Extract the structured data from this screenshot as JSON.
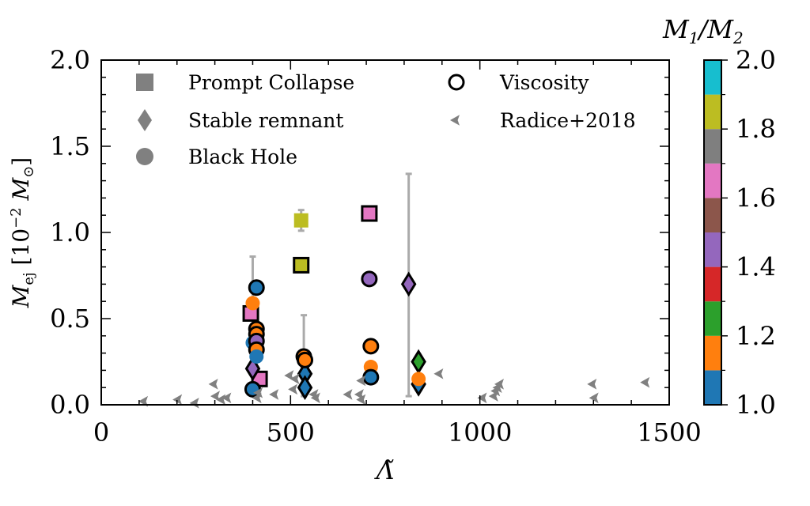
{
  "chart_data": {
    "type": "scatter",
    "xlabel": "Λ̃",
    "ylabel": "M_ej [10^-2 M_⊙]",
    "xlim": [
      0,
      1500
    ],
    "ylim": [
      0,
      2.0
    ],
    "x_ticks": [
      "0",
      "500",
      "1000",
      "1500"
    ],
    "y_ticks": [
      "0.0",
      "0.5",
      "1.0",
      "1.5",
      "2.0"
    ],
    "colorbar": {
      "label": "M1/M2",
      "range": [
        1.0,
        2.0
      ],
      "ticks": [
        "1.0",
        "1.2",
        "1.4",
        "1.6",
        "1.8",
        "2.0"
      ],
      "colors": [
        "#1f77b4",
        "#ff7f0e",
        "#2ca02c",
        "#d62728",
        "#9467bd",
        "#8c564b",
        "#e377c2",
        "#7f7f7f",
        "#bcbd22",
        "#17becf"
      ]
    },
    "legend": {
      "placement": "upper",
      "entries": [
        {
          "label": "Prompt Collapse",
          "marker": "square"
        },
        {
          "label": "Stable remnant",
          "marker": "diamond"
        },
        {
          "label": "Black Hole",
          "marker": "circle"
        },
        {
          "label": "Viscosity",
          "marker": "open-circle"
        },
        {
          "label": "Radice+2018",
          "marker": "tri"
        }
      ]
    },
    "series": [
      {
        "marker": "square",
        "points": [
          {
            "x": 395,
            "y": 0.53,
            "q": 1.65,
            "visc": true
          },
          {
            "x": 418,
            "y": 0.15,
            "q": 1.65,
            "visc": true
          },
          {
            "x": 528,
            "y": 1.07,
            "q": 1.85,
            "visc": false,
            "err": [
              1.01,
              1.13
            ]
          },
          {
            "x": 528,
            "y": 0.81,
            "q": 1.85,
            "visc": true
          },
          {
            "x": 708,
            "y": 1.11,
            "q": 1.65,
            "visc": true
          }
        ]
      },
      {
        "marker": "diamond",
        "points": [
          {
            "x": 538,
            "y": 0.25,
            "q": 1.15,
            "visc": true
          },
          {
            "x": 538,
            "y": 0.18,
            "q": 1.05,
            "visc": true
          },
          {
            "x": 538,
            "y": 0.1,
            "q": 1.05,
            "visc": true
          },
          {
            "x": 812,
            "y": 0.7,
            "q": 1.45,
            "visc": true,
            "err": [
              0.05,
              1.34
            ]
          },
          {
            "x": 838,
            "y": 0.25,
            "q": 1.25,
            "visc": true
          },
          {
            "x": 838,
            "y": 0.12,
            "q": 1.05,
            "visc": true
          },
          {
            "x": 400,
            "y": 0.21,
            "q": 1.45,
            "visc": true
          }
        ]
      },
      {
        "marker": "circle",
        "points": [
          {
            "x": 410,
            "y": 0.68,
            "q": 1.05,
            "visc": true
          },
          {
            "x": 400,
            "y": 0.59,
            "q": 1.15,
            "visc": false,
            "err": [
              0.35,
              0.86
            ]
          },
          {
            "x": 410,
            "y": 0.44,
            "q": 1.15,
            "visc": true
          },
          {
            "x": 410,
            "y": 0.41,
            "q": 1.15,
            "visc": true
          },
          {
            "x": 400,
            "y": 0.36,
            "q": 1.05,
            "visc": false
          },
          {
            "x": 410,
            "y": 0.37,
            "q": 1.45,
            "visc": true
          },
          {
            "x": 410,
            "y": 0.32,
            "q": 1.15,
            "visc": true
          },
          {
            "x": 410,
            "y": 0.28,
            "q": 1.05,
            "visc": false
          },
          {
            "x": 400,
            "y": 0.09,
            "q": 1.05,
            "visc": true
          },
          {
            "x": 535,
            "y": 0.28,
            "q": 1.15,
            "visc": true,
            "err": [
              0.05,
              0.52
            ]
          },
          {
            "x": 538,
            "y": 0.26,
            "q": 1.15,
            "visc": true
          },
          {
            "x": 708,
            "y": 0.73,
            "q": 1.45,
            "visc": true
          },
          {
            "x": 712,
            "y": 0.34,
            "q": 1.15,
            "visc": true
          },
          {
            "x": 712,
            "y": 0.22,
            "q": 1.15,
            "visc": false
          },
          {
            "x": 712,
            "y": 0.16,
            "q": 1.05,
            "visc": true
          },
          {
            "x": 838,
            "y": 0.15,
            "q": 1.15,
            "visc": false
          }
        ]
      },
      {
        "marker": "tri",
        "name": "Radice+2018",
        "points": [
          {
            "x": 115,
            "y": 0.02
          },
          {
            "x": 205,
            "y": 0.03
          },
          {
            "x": 250,
            "y": 0.01
          },
          {
            "x": 300,
            "y": 0.12
          },
          {
            "x": 305,
            "y": 0.05
          },
          {
            "x": 320,
            "y": 0.03
          },
          {
            "x": 335,
            "y": 0.04
          },
          {
            "x": 415,
            "y": 0.04
          },
          {
            "x": 418,
            "y": 0.07
          },
          {
            "x": 460,
            "y": 0.06
          },
          {
            "x": 500,
            "y": 0.17
          },
          {
            "x": 510,
            "y": 0.09
          },
          {
            "x": 515,
            "y": 0.15
          },
          {
            "x": 565,
            "y": 0.06
          },
          {
            "x": 570,
            "y": 0.04
          },
          {
            "x": 655,
            "y": 0.06
          },
          {
            "x": 685,
            "y": 0.06
          },
          {
            "x": 690,
            "y": 0.14
          },
          {
            "x": 690,
            "y": 0.03
          },
          {
            "x": 895,
            "y": 0.18
          },
          {
            "x": 1010,
            "y": 0.04
          },
          {
            "x": 1040,
            "y": 0.05
          },
          {
            "x": 1045,
            "y": 0.08
          },
          {
            "x": 1050,
            "y": 0.1
          },
          {
            "x": 1055,
            "y": 0.12
          },
          {
            "x": 1300,
            "y": 0.12
          },
          {
            "x": 1305,
            "y": 0.04
          },
          {
            "x": 1440,
            "y": 0.13
          }
        ]
      }
    ]
  }
}
